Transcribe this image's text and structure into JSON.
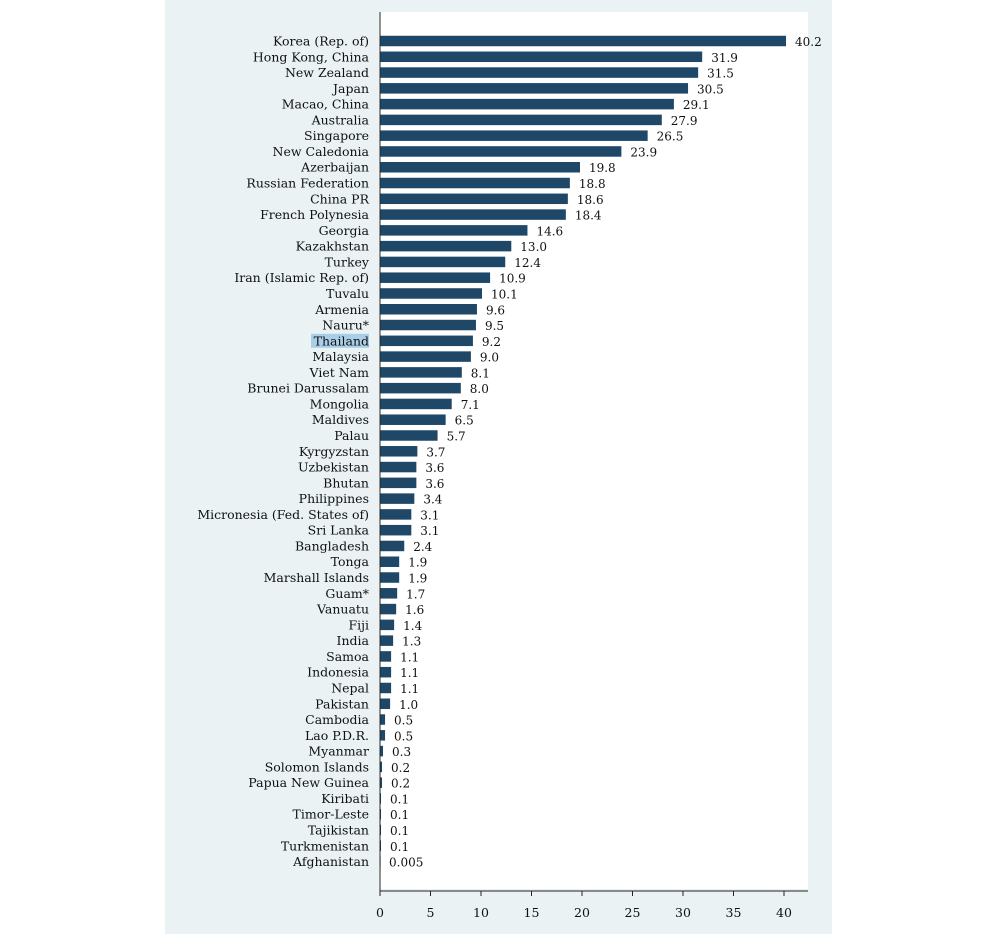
{
  "chart_data": {
    "type": "bar",
    "orientation": "horizontal",
    "title": "",
    "xlabel": "",
    "ylabel": "",
    "xlim": [
      0,
      42
    ],
    "xticks": [
      0,
      5,
      10,
      15,
      20,
      25,
      30,
      35,
      40
    ],
    "highlighted_category": "Thailand",
    "bar_color": "#1f4868",
    "highlight_color": "#a9cfe8",
    "grid": false,
    "categories": [
      "Korea (Rep. of)",
      "Hong Kong, China",
      "New Zealand",
      "Japan",
      "Macao, China",
      "Australia",
      "Singapore",
      "New Caledonia",
      "Azerbaijan",
      "Russian Federation",
      "China PR",
      "French Polynesia",
      "Georgia",
      "Kazakhstan",
      "Turkey",
      "Iran (Islamic Rep. of)",
      "Tuvalu",
      "Armenia",
      "Nauru*",
      "Thailand",
      "Malaysia",
      "Viet Nam",
      "Brunei Darussalam",
      "Mongolia",
      "Maldives",
      "Palau",
      "Kyrgyzstan",
      "Uzbekistan",
      "Bhutan",
      "Philippines",
      "Micronesia (Fed. States of)",
      "Sri Lanka",
      "Bangladesh",
      "Tonga",
      "Marshall Islands",
      "Guam*",
      "Vanuatu",
      "Fiji",
      "India",
      "Samoa",
      "Indonesia",
      "Nepal",
      "Pakistan",
      "Cambodia",
      "Lao P.D.R.",
      "Myanmar",
      "Solomon Islands",
      "Papua New Guinea",
      "Kiribati",
      "Timor-Leste",
      "Tajikistan",
      "Turkmenistan",
      "Afghanistan"
    ],
    "values": [
      40.2,
      31.9,
      31.5,
      30.5,
      29.1,
      27.9,
      26.5,
      23.9,
      19.8,
      18.8,
      18.6,
      18.4,
      14.6,
      13.0,
      12.4,
      10.9,
      10.1,
      9.6,
      9.5,
      9.2,
      9.0,
      8.1,
      8.0,
      7.1,
      6.5,
      5.7,
      3.7,
      3.6,
      3.6,
      3.4,
      3.1,
      3.1,
      2.4,
      1.9,
      1.9,
      1.7,
      1.6,
      1.4,
      1.3,
      1.1,
      1.1,
      1.1,
      1.0,
      0.5,
      0.5,
      0.3,
      0.2,
      0.2,
      0.1,
      0.1,
      0.1,
      0.1,
      0.005
    ],
    "value_labels": [
      "40.2",
      "31.9",
      "31.5",
      "30.5",
      "29.1",
      "27.9",
      "26.5",
      "23.9",
      "19.8",
      "18.8",
      "18.6",
      "18.4",
      "14.6",
      "13.0",
      "12.4",
      "10.9",
      "10.1",
      "9.6",
      "9.5",
      "9.2",
      "9.0",
      "8.1",
      "8.0",
      "7.1",
      "6.5",
      "5.7",
      "3.7",
      "3.6",
      "3.6",
      "3.4",
      "3.1",
      "3.1",
      "2.4",
      "1.9",
      "1.9",
      "1.7",
      "1.6",
      "1.4",
      "1.3",
      "1.1",
      "1.1",
      "1.1",
      "1.0",
      "0.5",
      "0.5",
      "0.3",
      "0.2",
      "0.2",
      "0.1",
      "0.1",
      "0.1",
      "0.1",
      "0.005"
    ]
  }
}
